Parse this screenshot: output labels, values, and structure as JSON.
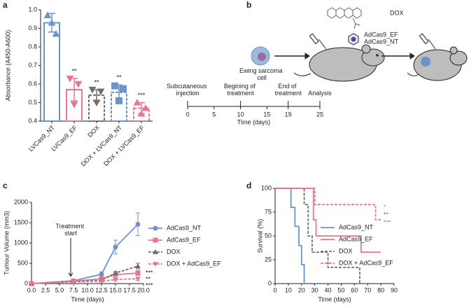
{
  "panel_labels": [
    "a",
    "b",
    "c",
    "d"
  ],
  "chart_data": [
    {
      "type": "bar",
      "ylabel": "Absorbance (A450-A600)",
      "categories": [
        "LVCas9_NT",
        "LVCas9_EF",
        "DOX",
        "DOX + LVCas9_NT",
        "DOX + LVCas9_EF"
      ],
      "values": [
        0.93,
        0.57,
        0.54,
        0.555,
        0.47
      ],
      "errors": [
        0.05,
        0.06,
        0.03,
        0.04,
        0.03
      ],
      "points": [
        [
          0.97,
          0.93,
          0.87
        ],
        [
          0.63,
          0.49,
          0.6
        ],
        [
          0.57,
          0.5,
          0.56
        ],
        [
          0.59,
          0.51,
          0.575
        ],
        [
          0.5,
          0.44,
          0.47
        ]
      ],
      "significance": [
        null,
        "**",
        "**",
        "**",
        "***"
      ],
      "colors": [
        "#6b95c9",
        "#e8768f",
        "#6e6e6e",
        "#6b95c9",
        "#e8768f"
      ],
      "dashed": [
        false,
        false,
        true,
        true,
        true
      ],
      "markers": [
        "triangle-up",
        "triangle-down",
        "triangle-down",
        "square",
        "triangle-up"
      ],
      "ylim": [
        0.4,
        1.0
      ],
      "yticks": [
        0.4,
        0.5,
        0.6,
        0.7,
        0.8,
        0.9,
        {
          "value": 1.0,
          "label": "1.0"
        }
      ]
    },
    {
      "type": "line",
      "xlabel": "Time (days)",
      "ylabel": "Tumour Volume (mm3)",
      "annotation": "Treatment start",
      "annotation_x": 7,
      "x": [
        0,
        7.5,
        12.5,
        15,
        19
      ],
      "series": [
        {
          "name": "AdCas9_NT",
          "color": "#6b95c9",
          "marker": "circle",
          "dashed": false,
          "values": [
            0,
            70,
            230,
            900,
            1460
          ],
          "errors": [
            0,
            15,
            60,
            170,
            280
          ],
          "significance": null
        },
        {
          "name": "AdCas9_EF",
          "color": "#e8768f",
          "marker": "square",
          "dashed": false,
          "values": [
            0,
            60,
            120,
            220,
            260
          ],
          "errors": [
            0,
            10,
            20,
            40,
            60
          ],
          "significance": "***"
        },
        {
          "name": "DOX",
          "color": "#6e6e6e",
          "marker": "triangle-up",
          "dashed": true,
          "values": [
            0,
            50,
            80,
            260,
            430
          ],
          "errors": [
            0,
            10,
            20,
            40,
            70
          ],
          "significance": "**"
        },
        {
          "name": "DOX + AdCas9_EF",
          "color": "#e8768f",
          "marker": "triangle-down",
          "dashed": true,
          "values": [
            0,
            40,
            60,
            100,
            120
          ],
          "errors": [
            0,
            10,
            15,
            30,
            40
          ],
          "significance": "***"
        }
      ],
      "xlim": [
        0,
        20
      ],
      "xticks": [
        {
          "value": 0,
          "label": "0.0"
        },
        {
          "value": 2.5,
          "label": "2.5"
        },
        {
          "value": 5,
          "label": "5.0"
        },
        {
          "value": 7.5,
          "label": "7.5"
        },
        {
          "value": 10,
          "label": "10.0"
        },
        {
          "value": 12.5,
          "label": "12.5"
        },
        {
          "value": 15,
          "label": "15.0"
        },
        {
          "value": 17.5,
          "label": "17.5"
        },
        {
          "value": 20,
          "label": "20.0"
        }
      ],
      "ylim": [
        0,
        2000
      ],
      "yticks": [
        0,
        500,
        1000,
        1500,
        2000
      ]
    },
    {
      "type": "step",
      "xlabel": "Time (days)",
      "ylabel": "Survival (%)",
      "series": [
        {
          "name": "AdCas9_NT",
          "color": "#6b95c9",
          "dashed": false,
          "x": [
            0,
            12,
            15,
            18,
            20,
            22
          ],
          "y": [
            100,
            80,
            60,
            40,
            20,
            0
          ],
          "significance": "***"
        },
        {
          "name": "AdCas9_EF",
          "color": "#e8768f",
          "dashed": false,
          "x": [
            0,
            29,
            31,
            65,
            80
          ],
          "y": [
            100,
            67,
            50,
            33,
            33
          ],
          "significance": "*"
        },
        {
          "name": "DOX",
          "color": "#6e6e6e",
          "dashed": true,
          "x": [
            0,
            22,
            25,
            28,
            40,
            64
          ],
          "y": [
            100,
            83,
            50,
            33,
            17,
            0
          ],
          "significance": "**"
        },
        {
          "name": "DOX + AdCas9_EF",
          "color": "#e8768f",
          "dashed": true,
          "x": [
            0,
            30,
            35,
            76,
            80
          ],
          "y": [
            100,
            83,
            83,
            67,
            67
          ],
          "significance": null
        }
      ],
      "xlim": [
        0,
        90
      ],
      "xticks": [
        0,
        10,
        20,
        30,
        40,
        50,
        60,
        70,
        80,
        90
      ],
      "ylim": [
        0,
        100
      ],
      "yticks": [
        0,
        25,
        50,
        75,
        100
      ]
    }
  ],
  "diagram": {
    "cell_label": "Ewing sarcoma cell",
    "drug_label": "DOX",
    "vector_labels": [
      "AdCas9_EF",
      "AdCas9_NT"
    ],
    "timeline": {
      "xlabel": "Time (days)",
      "ticks": [
        0,
        5,
        10,
        15,
        19,
        25
      ],
      "events": [
        {
          "label": "Subcutaneous injection",
          "day": 0
        },
        {
          "label": "Begining of treatment",
          "day": 10
        },
        {
          "label": "End of treatment",
          "day": 19
        },
        {
          "label": "Analysis",
          "day": 25
        }
      ]
    }
  }
}
